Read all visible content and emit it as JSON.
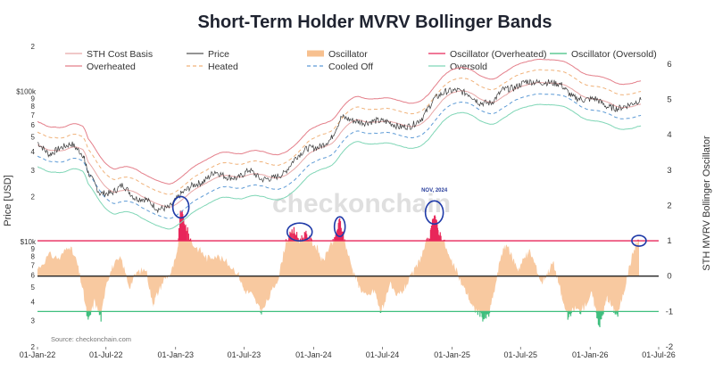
{
  "chart_data": {
    "type": "line",
    "title": "Short-Term Holder MVRV Bollinger Bands",
    "source": "Source: checkonchain.com",
    "watermark": "checkonchain",
    "ylabel_left": "Price [USD]",
    "ylabel_right": "STH MVRV Bollinger Oscillator",
    "left_axis": {
      "scale": "log",
      "range": [
        2000,
        200000
      ],
      "decade_labels": [
        {
          "value": 10000,
          "label": "$10k"
        },
        {
          "value": 100000,
          "label": "$100k"
        }
      ]
    },
    "right_axis": {
      "range": [
        -2,
        6.5
      ],
      "ticks": [
        -2,
        -1,
        0,
        1,
        2,
        3,
        4,
        5,
        6
      ]
    },
    "x_range": [
      "2022-01-01",
      "2026-07-01"
    ],
    "x_ticks": [
      "01-Jan-22",
      "01-Jul-22",
      "01-Jan-23",
      "01-Jul-23",
      "01-Jan-24",
      "01-Jul-24",
      "01-Jan-25",
      "01-Jul-25",
      "01-Jan-26",
      "01-Jul-26"
    ],
    "legend_position": "top",
    "legend": [
      {
        "label": "STH Cost Basis",
        "color": "#e8a7a7",
        "style": "solid"
      },
      {
        "label": "Price",
        "color": "#555555",
        "style": "solid"
      },
      {
        "label": "Oscillator",
        "color": "#f7c08f",
        "style": "area"
      },
      {
        "label": "Oscillator (Overheated)",
        "color": "#e8275a",
        "style": "solid"
      },
      {
        "label": "Oscillator (Oversold)",
        "color": "#3fbf7f",
        "style": "solid"
      },
      {
        "label": "Overheated",
        "color": "#e47f8a",
        "style": "solid"
      },
      {
        "label": "Heated",
        "color": "#f0b27a",
        "style": "dashed"
      },
      {
        "label": "Cooled Off",
        "color": "#5e9bd6",
        "style": "dashed"
      },
      {
        "label": "Oversold",
        "color": "#7fd6b6",
        "style": "solid"
      }
    ],
    "reference_lines": [
      {
        "name": "Overheated threshold",
        "value": 1,
        "color": "#e8275a"
      },
      {
        "name": "Zero",
        "value": 0,
        "color": "#222222"
      },
      {
        "name": "Oversold threshold",
        "value": -1,
        "color": "#3fbf7f"
      }
    ],
    "annotations": [
      {
        "text": "NOV, 2024",
        "date": "2024-11-15"
      }
    ],
    "price_series": {
      "name": "Price",
      "dates": [
        "2022-01-01",
        "2022-02-01",
        "2022-03-01",
        "2022-04-01",
        "2022-05-01",
        "2022-05-15",
        "2022-06-15",
        "2022-07-15",
        "2022-08-15",
        "2022-09-15",
        "2022-10-15",
        "2022-11-15",
        "2022-12-15",
        "2023-01-15",
        "2023-02-15",
        "2023-03-15",
        "2023-04-15",
        "2023-05-15",
        "2023-06-15",
        "2023-07-15",
        "2023-08-15",
        "2023-09-15",
        "2023-10-15",
        "2023-11-15",
        "2023-12-15",
        "2024-01-15",
        "2024-02-15",
        "2024-03-15",
        "2024-04-15",
        "2024-05-15",
        "2024-06-15",
        "2024-07-15",
        "2024-08-15",
        "2024-09-15",
        "2024-10-15",
        "2024-11-15",
        "2024-12-15",
        "2025-01-15",
        "2025-02-15",
        "2025-03-15",
        "2025-04-15",
        "2025-05-15",
        "2025-06-15",
        "2025-07-15",
        "2025-08-15",
        "2025-09-15",
        "2025-10-15",
        "2025-11-15",
        "2025-12-15",
        "2026-01-15",
        "2026-02-15",
        "2026-03-15",
        "2026-04-15",
        "2026-05-15"
      ],
      "values": [
        46000,
        38000,
        42000,
        45000,
        38000,
        29000,
        21000,
        21000,
        24000,
        19500,
        19200,
        16500,
        16900,
        20800,
        23800,
        25000,
        29500,
        27000,
        26500,
        30300,
        26000,
        26500,
        28500,
        36500,
        42000,
        42500,
        48000,
        68000,
        64000,
        62000,
        64000,
        63000,
        58000,
        59000,
        67000,
        90000,
        100000,
        102000,
        96000,
        84000,
        84000,
        103000,
        106000,
        117000,
        115000,
        115000,
        112000,
        92000,
        88000,
        90000,
        79000,
        77000,
        82000,
        88000
      ]
    },
    "oscillator_series": {
      "name": "Oscillator",
      "dates": [
        "2022-01-01",
        "2022-02-01",
        "2022-03-01",
        "2022-03-25",
        "2022-04-15",
        "2022-05-01",
        "2022-05-15",
        "2022-06-01",
        "2022-06-18",
        "2022-07-01",
        "2022-07-20",
        "2022-08-10",
        "2022-09-01",
        "2022-09-20",
        "2022-10-15",
        "2022-11-01",
        "2022-11-10",
        "2022-12-01",
        "2022-12-20",
        "2023-01-05",
        "2023-01-15",
        "2023-01-25",
        "2023-02-15",
        "2023-03-10",
        "2023-03-25",
        "2023-04-15",
        "2023-05-15",
        "2023-06-15",
        "2023-07-01",
        "2023-07-20",
        "2023-08-10",
        "2023-08-18",
        "2023-09-10",
        "2023-10-01",
        "2023-10-20",
        "2023-11-10",
        "2023-11-25",
        "2023-12-10",
        "2023-12-25",
        "2024-01-10",
        "2024-01-25",
        "2024-02-10",
        "2024-02-25",
        "2024-03-10",
        "2024-03-25",
        "2024-04-10",
        "2024-04-20",
        "2024-05-01",
        "2024-05-20",
        "2024-06-10",
        "2024-06-25",
        "2024-07-05",
        "2024-07-20",
        "2024-08-05",
        "2024-08-25",
        "2024-09-10",
        "2024-10-01",
        "2024-10-20",
        "2024-11-05",
        "2024-11-15",
        "2024-11-25",
        "2024-12-10",
        "2024-12-25",
        "2025-01-10",
        "2025-01-25",
        "2025-02-10",
        "2025-02-25",
        "2025-03-10",
        "2025-03-25",
        "2025-04-08",
        "2025-04-25",
        "2025-05-10",
        "2025-05-25",
        "2025-06-10",
        "2025-06-25",
        "2025-07-10",
        "2025-07-25",
        "2025-08-10",
        "2025-08-25",
        "2025-09-10",
        "2025-09-25",
        "2025-10-10",
        "2025-10-20",
        "2025-11-05",
        "2025-11-20",
        "2025-12-05",
        "2025-12-20",
        "2026-01-05",
        "2026-01-15",
        "2026-01-25",
        "2026-02-05",
        "2026-02-15",
        "2026-03-01",
        "2026-03-15",
        "2026-04-01",
        "2026-04-15",
        "2026-05-01",
        "2026-05-10"
      ],
      "values": [
        0.2,
        0.6,
        0.5,
        0.9,
        0.4,
        -0.4,
        -1.3,
        -0.7,
        -1.2,
        -0.2,
        0.3,
        0.5,
        -0.3,
        0.1,
        0.2,
        -0.8,
        -0.6,
        -0.1,
        0.1,
        0.6,
        1.9,
        1.5,
        0.9,
        0.7,
        0.5,
        0.6,
        0.4,
        0.1,
        -0.4,
        -0.5,
        -0.9,
        -1.0,
        -0.5,
        0.0,
        1.0,
        1.3,
        1.0,
        1.2,
        1.0,
        0.8,
        0.4,
        0.8,
        1.0,
        1.6,
        0.9,
        0.3,
        0.0,
        -0.3,
        -0.6,
        -0.4,
        -1.0,
        -0.8,
        -0.2,
        -0.6,
        -0.4,
        -0.1,
        0.3,
        0.8,
        1.2,
        1.8,
        1.3,
        1.0,
        0.5,
        0.2,
        -0.2,
        -0.5,
        -0.9,
        -1.0,
        -1.2,
        -1.1,
        -0.3,
        0.6,
        0.9,
        0.5,
        0.2,
        0.5,
        0.7,
        0.3,
        -0.2,
        0.1,
        0.4,
        -0.2,
        -0.7,
        -1.2,
        -0.9,
        -1.0,
        -0.8,
        -0.5,
        -0.9,
        -1.4,
        -1.0,
        -0.6,
        -0.9,
        -1.1,
        -0.4,
        0.3,
        0.9,
        1.0
      ]
    }
  }
}
